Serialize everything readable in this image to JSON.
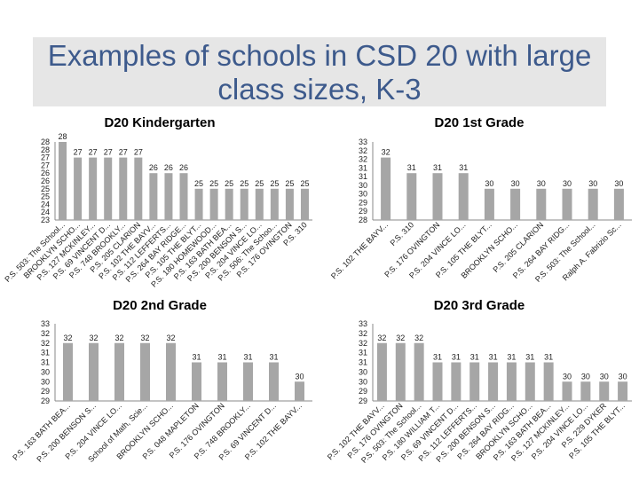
{
  "slide": {
    "title": "Examples of schools in CSD 20 with large class sizes, K-3",
    "accent_color": "#3d5a8c",
    "bar_color": "#a6a6a6"
  },
  "chart_data": [
    {
      "type": "bar",
      "title": "D20 Kindergarten",
      "yticks": [
        "28",
        "28",
        "27",
        "27",
        "26",
        "26",
        "25",
        "25",
        "24",
        "24",
        "23"
      ],
      "categories": [
        "P.S. 503: The School...",
        "BROOKLYN SCHO...",
        "P.S. 127 MCKINLEY...",
        "P.S. 69 VINCENT D...",
        "P.S. 748 BROOKLY...",
        "P.S. 205 CLARION",
        "P.S. 102 THE BAYV...",
        "P.S. 112 LEFFERTS...",
        "P.S. 264 BAY RIDGE...",
        "P.S. 105 THE BLYT...",
        "P.S. 180 HOMEWOOD...",
        "P.S. 163 BATH BEA...",
        "P.S. 200 BENSON S...",
        "P.S. 204 VINCE LO...",
        "P.S. 506: The Schoo...",
        "P.S. 176 OVINGTON",
        "P.S. 310"
      ],
      "values": [
        28,
        27,
        27,
        27,
        27,
        27,
        26,
        26,
        26,
        25,
        25,
        25,
        25,
        25,
        25,
        25,
        25
      ],
      "ylim": [
        23,
        28
      ]
    },
    {
      "type": "bar",
      "title": "D20 1st Grade",
      "yticks": [
        "33",
        "32",
        "32",
        "31",
        "31",
        "30",
        "30",
        "29",
        "29",
        "28"
      ],
      "categories": [
        "P.S. 102 THE BAYV...",
        "P.S. 310",
        "P.S. 176 OVINGTON",
        "P.S. 204 VINCE LO...",
        "P.S. 105 THE BLYT...",
        "BROOKLYN SCHO...",
        "P.S. 205 CLARION",
        "P.S. 264 BAY RIDG...",
        "P.S. 503: The School...",
        "Ralph A. Fabrizio Sc..."
      ],
      "values": [
        32,
        31,
        31,
        31,
        30,
        30,
        30,
        30,
        30,
        30
      ],
      "ylim": [
        28,
        33
      ]
    },
    {
      "type": "bar",
      "title": "D20 2nd Grade",
      "yticks": [
        "33",
        "32",
        "32",
        "31",
        "31",
        "30",
        "30",
        "29",
        "29"
      ],
      "categories": [
        "P.S. 163 BATH BEA...",
        "P.S. 200 BENSON S...",
        "P.S. 204 VINCE LO...",
        "School of Math, Scie...",
        "BROOKLYN SCHO...",
        "P.S. 048 MAPLETON",
        "P.S. 176 OVINGTON",
        "P.S. 748 BROOKLY...",
        "P.S. 69 VINCENT D...",
        "P.S. 102 THE BAYV..."
      ],
      "values": [
        32,
        32,
        32,
        32,
        32,
        31,
        31,
        31,
        31,
        30
      ],
      "ylim": [
        29,
        33
      ]
    },
    {
      "type": "bar",
      "title": "D20 3rd Grade",
      "yticks": [
        "33",
        "32",
        "32",
        "31",
        "31",
        "30",
        "30",
        "29",
        "29"
      ],
      "categories": [
        "P.S. 102 THE BAYV...",
        "P.S. 176 OVINGTON",
        "P.S. 503: The School...",
        "P.S. 180 WILLIAM T...",
        "P.S. 69 VINCENT D...",
        "P.S. 112 LEFFERTS...",
        "P.S. 200 BENSON S...",
        "P.S. 264 BAY RIDG...",
        "BROOKLYN SCHO...",
        "P.S. 163 BATH BEA...",
        "P.S. 127 MCKINLEY...",
        "P.S. 204 VINCE LO...",
        "P.S. 229 DYKER",
        "P.S. 105 THE BLYT..."
      ],
      "values": [
        32,
        32,
        32,
        31,
        31,
        31,
        31,
        31,
        31,
        31,
        30,
        30,
        30,
        30
      ],
      "ylim": [
        29,
        33
      ]
    }
  ]
}
